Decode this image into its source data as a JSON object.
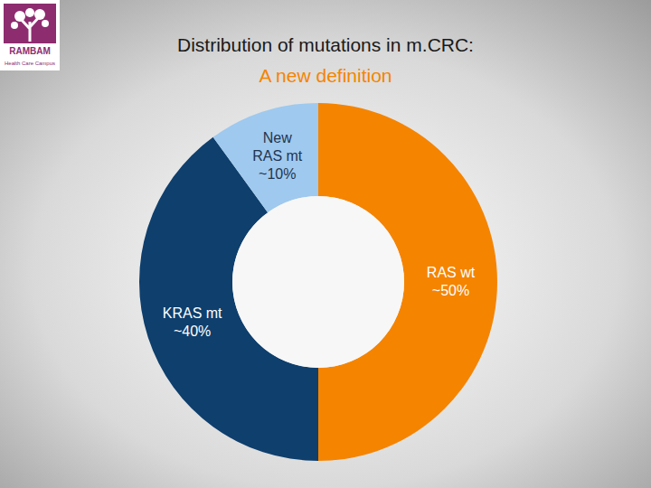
{
  "logo": {
    "name": "RAMBAM",
    "tagline": "Health Care Campus"
  },
  "chart_data": {
    "type": "donut",
    "title": "Distribution of mutations in m.CRC:",
    "subtitle": "A new definition",
    "categories": [
      "RAS wt",
      "KRAS mt",
      "New RAS mt"
    ],
    "values": [
      50,
      40,
      10
    ],
    "value_labels": [
      "~50%",
      "~40%",
      "~10%"
    ],
    "colors": [
      "#f58400",
      "#0e3f6d",
      "#9fc9ee"
    ],
    "data_labels": true
  }
}
